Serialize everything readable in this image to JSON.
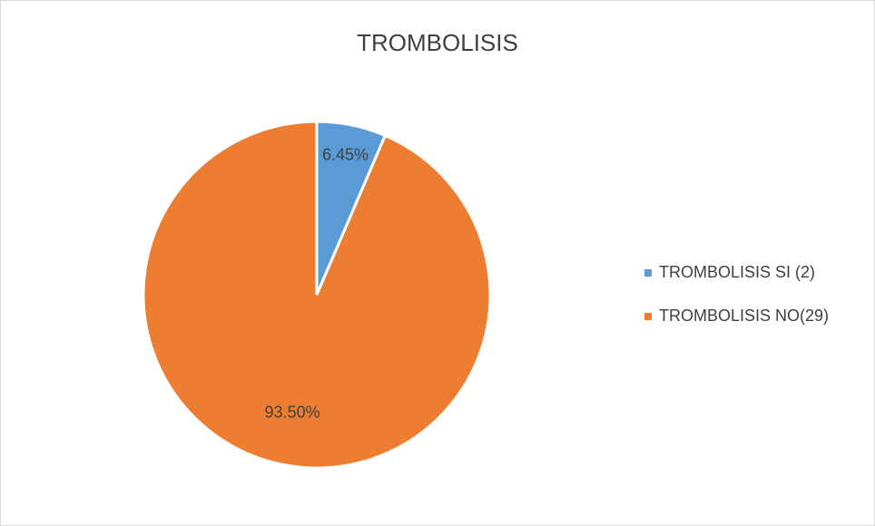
{
  "chart_data": {
    "type": "pie",
    "title": "TROMBOLISIS",
    "categories": [
      "TROMBOLISIS SI (2)",
      "TROMBOLISIS NO(29)"
    ],
    "values": [
      6.45,
      93.5
    ],
    "value_labels": [
      "6.45%",
      "93.50%"
    ],
    "colors": [
      "#5b9bd5",
      "#ed7d31"
    ],
    "legend": "right"
  }
}
